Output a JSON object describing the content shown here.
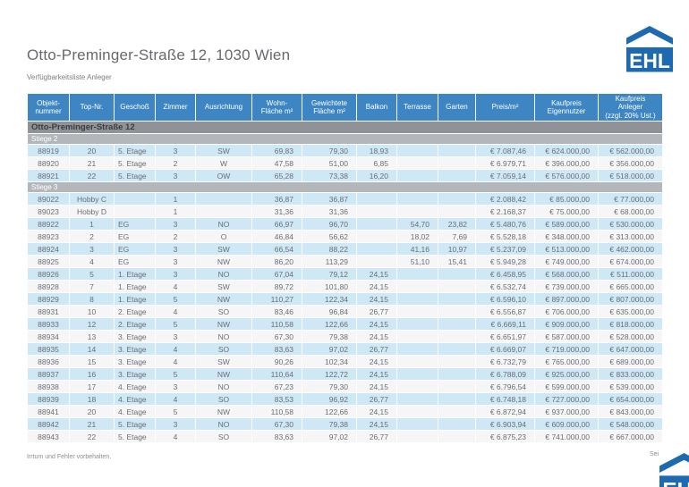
{
  "page": {
    "title": "Otto-Preminger-Straße 12, 1030 Wien",
    "subtitle": "Verfügbarkeitsliste Anleger",
    "footer_left": "Irrtum und Fehler vorbehalten.",
    "footer_right": "Sei",
    "logo_text": "EHL"
  },
  "colors": {
    "header_blue": "#3d86c3",
    "logo_blue": "#1e6ab0",
    "row_light_blue": "#cfe8f6",
    "row_white": "#f6f6f7",
    "building_bar_gray": "#8f9296",
    "section_bar_gray": "#b4b7ba",
    "text_gray": "#6b6e73"
  },
  "table": {
    "building_header": "Otto-Preminger-Straße 12",
    "columns": [
      "Objekt-\nnummer",
      "Top-Nr.",
      "Geschoß",
      "Zimmer",
      "Ausrichtung",
      "Wohn-\nFläche m²",
      "Gewichtete\nFläche m²",
      "Balkon",
      "Terrasse",
      "Garten",
      "Preis/m²",
      "Kaufpreis\nEigennutzer",
      "Kaufpreis\nAnleger\n(zzgl. 20% Ust.)"
    ],
    "sections": [
      {
        "label": "Stiege 2",
        "rows": [
          [
            "88919",
            "20",
            "5. Etage",
            "3",
            "SW",
            "69,83",
            "79,30",
            "18,93",
            "",
            "",
            "€ 7.087,46",
            "€ 624.000,00",
            "€ 562.000,00"
          ],
          [
            "88920",
            "21",
            "5. Etage",
            "2",
            "W",
            "47,58",
            "51,00",
            "6,85",
            "",
            "",
            "€ 6.979,71",
            "€ 396.000,00",
            "€ 356.000,00"
          ],
          [
            "88921",
            "22",
            "5. Etage",
            "3",
            "OW",
            "65,28",
            "73,38",
            "16,20",
            "",
            "",
            "€ 7.059,14",
            "€ 576.000,00",
            "€ 518.000,00"
          ]
        ]
      },
      {
        "label": "Stiege 3",
        "rows": [
          [
            "89022",
            "Hobby C",
            "",
            "1",
            "",
            "36,87",
            "36,87",
            "",
            "",
            "",
            "€ 2.088,42",
            "€ 85.000,00",
            "€ 77.000,00"
          ],
          [
            "89023",
            "Hobby D",
            "",
            "1",
            "",
            "31,36",
            "31,36",
            "",
            "",
            "",
            "€ 2.168,37",
            "€ 75.000,00",
            "€ 68.000,00"
          ],
          [
            "88922",
            "1",
            "EG",
            "3",
            "NO",
            "66,97",
            "96,70",
            "",
            "54,70",
            "23,82",
            "€ 5.480,76",
            "€ 589.000,00",
            "€ 530.000,00"
          ],
          [
            "88923",
            "2",
            "EG",
            "2",
            "O",
            "46,84",
            "56,62",
            "",
            "18,02",
            "7,69",
            "€ 5.528,18",
            "€ 348.000,00",
            "€ 313.000,00"
          ],
          [
            "88924",
            "3",
            "EG",
            "3",
            "SW",
            "66,54",
            "88,22",
            "",
            "41,16",
            "10,97",
            "€ 5.237,09",
            "€ 513.000,00",
            "€ 462.000,00"
          ],
          [
            "88925",
            "4",
            "EG",
            "3",
            "NW",
            "86,20",
            "113,29",
            "",
            "51,10",
            "15,41",
            "€ 5.949,28",
            "€ 749.000,00",
            "€ 674.000,00"
          ],
          [
            "88926",
            "5",
            "1. Etage",
            "3",
            "NO",
            "67,04",
            "79,12",
            "24,15",
            "",
            "",
            "€ 6.458,95",
            "€ 568.000,00",
            "€ 511.000,00"
          ],
          [
            "88928",
            "7",
            "1. Etage",
            "4",
            "SW",
            "89,72",
            "101,80",
            "24,15",
            "",
            "",
            "€ 6.532,74",
            "€ 739.000,00",
            "€ 665.000,00"
          ],
          [
            "88929",
            "8",
            "1. Etage",
            "5",
            "NW",
            "110,27",
            "122,34",
            "24,15",
            "",
            "",
            "€ 6.596,10",
            "€ 897.000,00",
            "€ 807.000,00"
          ],
          [
            "88931",
            "10",
            "2. Etage",
            "4",
            "SO",
            "83,46",
            "96,84",
            "26,77",
            "",
            "",
            "€ 6.556,87",
            "€ 706.000,00",
            "€ 635.000,00"
          ],
          [
            "88933",
            "12",
            "2. Etage",
            "5",
            "NW",
            "110,58",
            "122,66",
            "24,15",
            "",
            "",
            "€ 6.669,11",
            "€ 909.000,00",
            "€ 818.000,00"
          ],
          [
            "88934",
            "13",
            "3. Etage",
            "3",
            "NO",
            "67,30",
            "79,38",
            "24,15",
            "",
            "",
            "€ 6.651,97",
            "€ 587.000,00",
            "€ 528.000,00"
          ],
          [
            "88935",
            "14",
            "3. Etage",
            "4",
            "SO",
            "83,63",
            "97,02",
            "26,77",
            "",
            "",
            "€ 6.669,07",
            "€ 719.000,00",
            "€ 647.000,00"
          ],
          [
            "88936",
            "15",
            "3. Etage",
            "4",
            "SW",
            "90,26",
            "102,34",
            "24,15",
            "",
            "",
            "€ 6.732,79",
            "€ 765.000,00",
            "€ 689.000,00"
          ],
          [
            "88937",
            "16",
            "3. Etage",
            "5",
            "NW",
            "110,64",
            "122,72",
            "24,15",
            "",
            "",
            "€ 6.788,09",
            "€ 925.000,00",
            "€ 833.000,00"
          ],
          [
            "88938",
            "17",
            "4. Etage",
            "3",
            "NO",
            "67,23",
            "79,30",
            "24,15",
            "",
            "",
            "€ 6.796,54",
            "€ 599.000,00",
            "€ 539.000,00"
          ],
          [
            "88939",
            "18",
            "4. Etage",
            "4",
            "SO",
            "83,53",
            "96,92",
            "26,77",
            "",
            "",
            "€ 6.748,18",
            "€ 727.000,00",
            "€ 654.000,00"
          ],
          [
            "88941",
            "20",
            "4. Etage",
            "5",
            "NW",
            "110,58",
            "122,66",
            "24,15",
            "",
            "",
            "€ 6.872,94",
            "€ 937.000,00",
            "€ 843.000,00"
          ],
          [
            "88942",
            "21",
            "5. Etage",
            "3",
            "NO",
            "67,30",
            "79,38",
            "24,15",
            "",
            "",
            "€ 6.903,94",
            "€ 609.000,00",
            "€ 548.000,00"
          ],
          [
            "88943",
            "22",
            "5. Etage",
            "4",
            "SO",
            "83,63",
            "97,02",
            "26,77",
            "",
            "",
            "€ 6.875,23",
            "€ 741.000,00",
            "€ 667.000,00"
          ]
        ]
      }
    ]
  }
}
